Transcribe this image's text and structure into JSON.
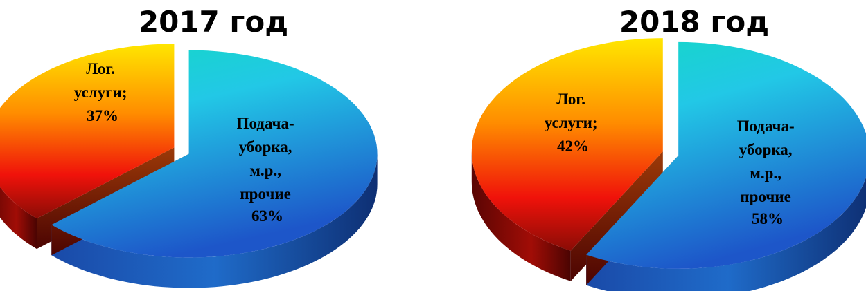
{
  "chart_data": [
    {
      "type": "pie",
      "title": "2017 год",
      "slices": [
        {
          "label_lines": [
            "Подача-",
            "уборка,",
            "м.р.,",
            "прочие"
          ],
          "value": 63,
          "value_label": "63%",
          "color_top": "#13d6c8",
          "color_bottom": "#1a4fbe"
        },
        {
          "label_lines": [
            "Лог.",
            "услуги;"
          ],
          "value": 37,
          "value_label": "37%",
          "color_top": "#ffe100",
          "color_bottom": "#7a0a04"
        }
      ]
    },
    {
      "type": "pie",
      "title": "2018 год",
      "slices": [
        {
          "label_lines": [
            "Подача-",
            "уборка,",
            "м.р.,",
            "прочие"
          ],
          "value": 58,
          "value_label": "58%",
          "color_top": "#13d6c8",
          "color_bottom": "#1a4fbe"
        },
        {
          "label_lines": [
            "Лог.",
            "услуги;"
          ],
          "value": 42,
          "value_label": "42%",
          "color_top": "#ffe100",
          "color_bottom": "#7a0a04"
        }
      ]
    }
  ]
}
